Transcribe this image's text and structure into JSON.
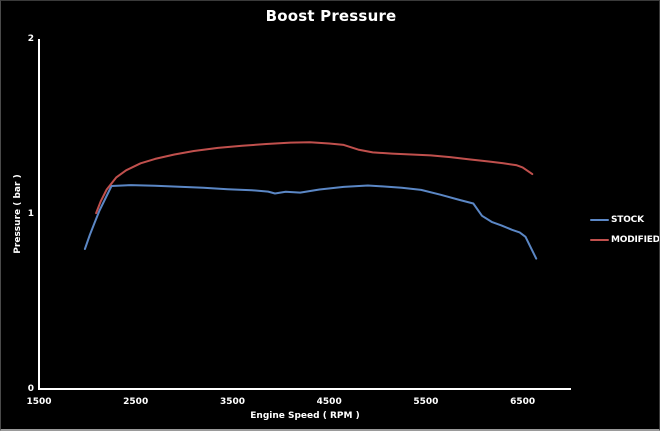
{
  "chart_data": {
    "type": "line",
    "title": "Boost Pressure",
    "xlabel": "Engine Speed ( RPM )",
    "ylabel": "Pressure ( bar )",
    "xlim": [
      1500,
      7000
    ],
    "ylim": [
      0,
      2
    ],
    "x_ticks": [
      1500,
      2500,
      3500,
      4500,
      5500,
      6500
    ],
    "y_ticks": [
      0,
      1,
      2
    ],
    "grid": false,
    "legend_position": "right-middle",
    "background_color": "#000000",
    "axis_color": "#ffffff",
    "text_color": "#ffffff",
    "series": [
      {
        "name": "STOCK",
        "color": "#5b87c5",
        "points": [
          [
            1975,
            0.8
          ],
          [
            2025,
            0.88
          ],
          [
            2075,
            0.95
          ],
          [
            2125,
            1.02
          ],
          [
            2250,
            1.16
          ],
          [
            2450,
            1.165
          ],
          [
            2700,
            1.162
          ],
          [
            2950,
            1.156
          ],
          [
            3200,
            1.15
          ],
          [
            3450,
            1.142
          ],
          [
            3700,
            1.136
          ],
          [
            3870,
            1.128
          ],
          [
            3940,
            1.117
          ],
          [
            4050,
            1.127
          ],
          [
            4200,
            1.122
          ],
          [
            4400,
            1.14
          ],
          [
            4650,
            1.155
          ],
          [
            4900,
            1.163
          ],
          [
            5050,
            1.158
          ],
          [
            5250,
            1.15
          ],
          [
            5450,
            1.138
          ],
          [
            5650,
            1.11
          ],
          [
            5850,
            1.08
          ],
          [
            5990,
            1.06
          ],
          [
            6080,
            0.99
          ],
          [
            6180,
            0.955
          ],
          [
            6280,
            0.935
          ],
          [
            6390,
            0.91
          ],
          [
            6470,
            0.895
          ],
          [
            6530,
            0.87
          ],
          [
            6640,
            0.745
          ]
        ]
      },
      {
        "name": "MODIFIED",
        "color": "#c0504d",
        "points": [
          [
            2090,
            1.005
          ],
          [
            2140,
            1.075
          ],
          [
            2200,
            1.14
          ],
          [
            2300,
            1.21
          ],
          [
            2400,
            1.25
          ],
          [
            2550,
            1.29
          ],
          [
            2700,
            1.315
          ],
          [
            2900,
            1.34
          ],
          [
            3100,
            1.36
          ],
          [
            3350,
            1.378
          ],
          [
            3600,
            1.39
          ],
          [
            3850,
            1.4
          ],
          [
            4100,
            1.408
          ],
          [
            4300,
            1.41
          ],
          [
            4500,
            1.403
          ],
          [
            4650,
            1.395
          ],
          [
            4800,
            1.368
          ],
          [
            4950,
            1.352
          ],
          [
            5150,
            1.345
          ],
          [
            5350,
            1.34
          ],
          [
            5550,
            1.335
          ],
          [
            5750,
            1.325
          ],
          [
            5950,
            1.312
          ],
          [
            6150,
            1.3
          ],
          [
            6300,
            1.29
          ],
          [
            6440,
            1.278
          ],
          [
            6500,
            1.266
          ],
          [
            6600,
            1.228
          ]
        ]
      }
    ]
  }
}
